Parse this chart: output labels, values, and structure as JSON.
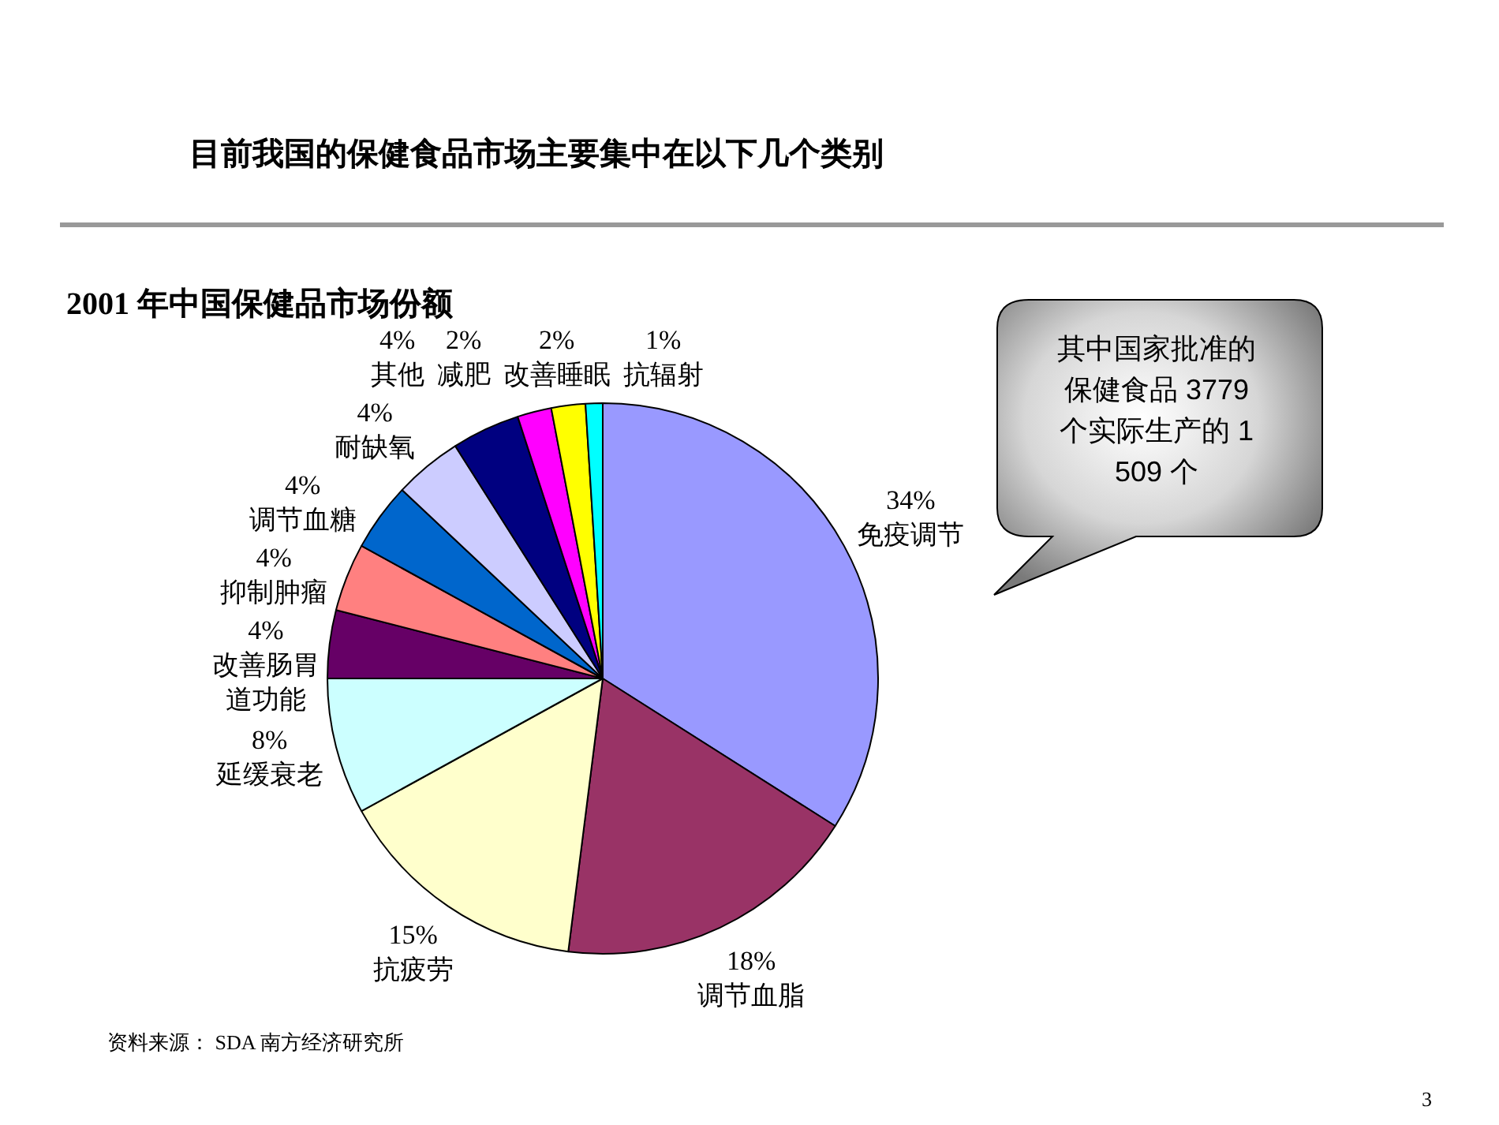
{
  "chart_data": {
    "type": "pie",
    "title": "目前我国的保健食品市场主要集中在以下几个类别",
    "subtitle": "2001 年中国保健品市场份额",
    "categories": [
      "免疫调节",
      "调节血脂",
      "抗疲劳",
      "延缓衰老",
      "改善肠胃道功能",
      "抑制肿瘤",
      "调节血糖",
      "耐缺氧",
      "其他",
      "减肥",
      "改善睡眠",
      "抗辐射"
    ],
    "values": [
      34,
      18,
      15,
      8,
      4,
      4,
      4,
      4,
      4,
      2,
      2,
      1
    ],
    "colors": [
      "#9999ff",
      "#993366",
      "#ffffcc",
      "#ccffff",
      "#660066",
      "#ff8080",
      "#0066cc",
      "#ccccff",
      "#000080",
      "#ff00ff",
      "#ffff00",
      "#00ffff"
    ],
    "value_labels": [
      "34%",
      "18%",
      "15%",
      "8%",
      "4%",
      "4%",
      "4%",
      "4%",
      "4%",
      "2%",
      "2%",
      "1%"
    ],
    "annotations": [
      "其中国家批准的保健食品 3779 个实际生产的 1 509 个",
      "资料来源： SDA 南方经济研究所",
      "3"
    ]
  }
}
